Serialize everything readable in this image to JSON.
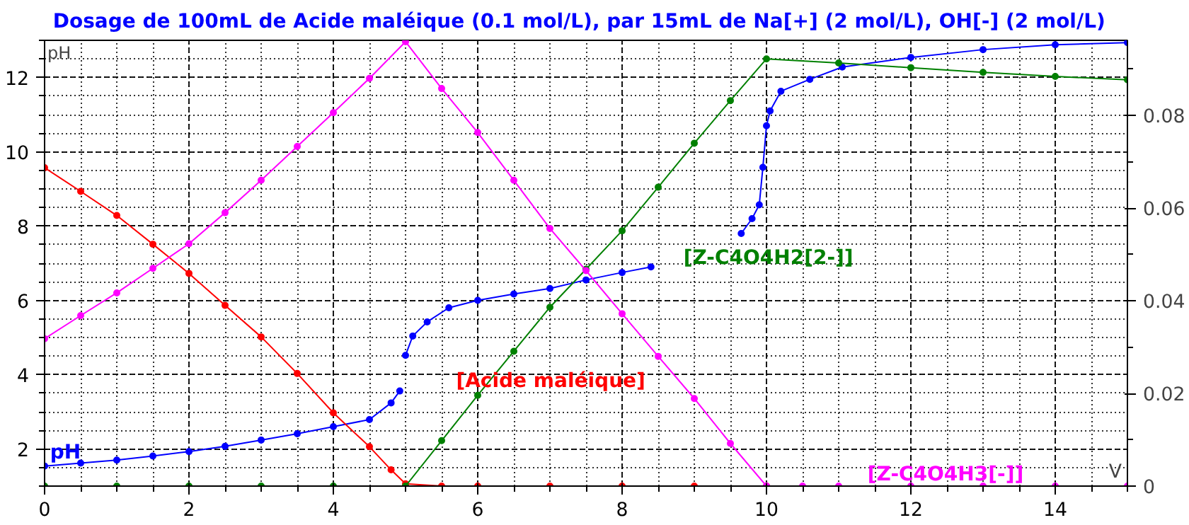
{
  "chart_data": {
    "type": "line",
    "title": "Dosage de 100mL de Acide maléique (0.1 mol/L),  par 15mL  de Na[+] (2 mol/L), OH[-] (2 mol/L)",
    "xlabel": "V",
    "ylabel": "pH",
    "xlim": [
      0,
      15
    ],
    "xticks": [
      0,
      2,
      4,
      6,
      8,
      10,
      12,
      14
    ],
    "ylim": [
      1,
      13
    ],
    "yticks": [
      2,
      4,
      6,
      8,
      10,
      12
    ],
    "y2lim": [
      0,
      0.0962
    ],
    "y2ticks": [
      0,
      0.02,
      0.04,
      0.06,
      0.08
    ],
    "grid": true,
    "legend": false,
    "marker": "circle",
    "line_style": "solid",
    "series": [
      {
        "name": "pH",
        "color": "#0000ff",
        "x": [
          0,
          0.5,
          1,
          1.5,
          2,
          2.5,
          3,
          3.5,
          4,
          4.5,
          4.8,
          4.92,
          4.96,
          5.0,
          5.1,
          5.3,
          5.6,
          6,
          6.5,
          7,
          7.5,
          8,
          8.4,
          9.0,
          9.65,
          9.8,
          9.9,
          9.95,
          10.0,
          10.05,
          10.2,
          10.6,
          11.05,
          12,
          13,
          14,
          15
        ],
        "values": [
          1.54,
          1.62,
          1.7,
          1.81,
          1.93,
          2.07,
          2.24,
          2.41,
          2.6,
          2.79,
          3.24,
          3.56,
          null,
          4.52,
          5.04,
          5.42,
          5.8,
          6.0,
          6.17,
          6.32,
          6.55,
          6.75,
          6.9,
          null,
          7.8,
          8.2,
          8.57,
          9.58,
          10.7,
          11.1,
          11.63,
          11.95,
          12.28,
          12.54,
          12.75,
          12.88,
          12.94
        ]
      },
      {
        "name": "[Acide maléique]",
        "color": "#ff0000",
        "axis": "y2",
        "x": [
          0,
          0.5,
          1,
          1.5,
          2,
          2.5,
          3,
          3.5,
          4,
          4.5,
          4.8,
          5,
          5.5,
          6,
          7,
          8,
          9,
          10
        ],
        "values": [
          0.0687,
          0.0636,
          0.0584,
          0.0522,
          0.0459,
          0.039,
          0.0322,
          0.0243,
          0.0158,
          0.0085,
          0.0035,
          0.0005,
          0,
          0,
          0,
          0,
          0,
          0
        ]
      },
      {
        "name": "[Z-C4O4H2[2-]]",
        "color": "#008000",
        "axis": "y2",
        "x": [
          0,
          1,
          2,
          3,
          4,
          5,
          5.5,
          6,
          6.5,
          7,
          7.5,
          8,
          8.5,
          9,
          9.5,
          10,
          11,
          12,
          13,
          14,
          15
        ],
        "values": [
          0,
          0,
          0,
          0,
          0,
          0,
          0.0098,
          0.0196,
          0.0291,
          0.0386,
          0.0468,
          0.0551,
          0.0645,
          0.074,
          0.0832,
          0.0922,
          0.0913,
          0.0903,
          0.0893,
          0.0884,
          0.0877
        ]
      },
      {
        "name": "[Z-C4O4H3[-]]",
        "color": "#ff00ff",
        "axis": "y2",
        "x": [
          0,
          0.5,
          1,
          1.5,
          2,
          2.5,
          3,
          3.5,
          4,
          4.5,
          5,
          5.5,
          6,
          6.5,
          7,
          7.5,
          8,
          8.5,
          9,
          9.5,
          10,
          10.5,
          11,
          12,
          13,
          14,
          15
        ],
        "values": [
          0.0318,
          0.0368,
          0.0417,
          0.047,
          0.0523,
          0.059,
          0.066,
          0.0733,
          0.0806,
          0.088,
          0.0959,
          0.0858,
          0.0763,
          0.066,
          0.0556,
          0.0465,
          0.0372,
          0.028,
          0.0189,
          0.0092,
          0,
          0,
          0,
          0,
          0,
          0,
          0
        ]
      }
    ]
  }
}
